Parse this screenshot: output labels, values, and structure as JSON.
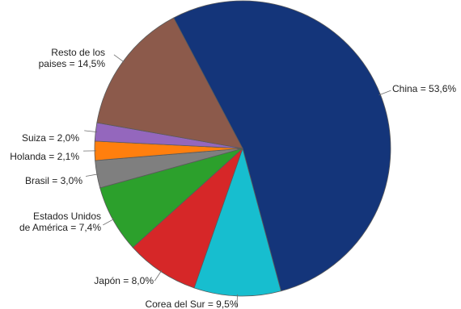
{
  "chart_data": {
    "type": "pie",
    "title": "",
    "legend": "none",
    "start_angle_deg": 332.2,
    "direction": "clockwise",
    "slices": [
      {
        "name": "China",
        "value": 53.6,
        "display": "53,6%",
        "color": "#14357a",
        "label_lines": [
          "China = 53,6%"
        ]
      },
      {
        "name": "Corea del Sur",
        "value": 9.5,
        "display": "9,5%",
        "color": "#17becf",
        "label_lines": [
          "Corea del Sur = 9,5%"
        ]
      },
      {
        "name": "Japón",
        "value": 8.0,
        "display": "8,0%",
        "color": "#d62728",
        "label_lines": [
          "Japón = 8,0%"
        ]
      },
      {
        "name": "Estados Unidos de América",
        "value": 7.4,
        "display": "7,4%",
        "color": "#2ca02c",
        "label_lines": [
          "Estados Unidos",
          "de América = 7,4%"
        ]
      },
      {
        "name": "Brasil",
        "value": 3.0,
        "display": "3,0%",
        "color": "#7f7f7f",
        "label_lines": [
          "Brasil = 3,0%"
        ]
      },
      {
        "name": "Holanda",
        "value": 2.1,
        "display": "2,1%",
        "color": "#ff7f0e",
        "label_lines": [
          "Holanda = 2,1%"
        ]
      },
      {
        "name": "Suiza",
        "value": 2.0,
        "display": "2,0%",
        "color": "#9467bd",
        "label_lines": [
          "Suiza = 2,0%"
        ]
      },
      {
        "name": "Resto de los paises",
        "value": 14.5,
        "display": "14,5%",
        "color": "#8c5a4b",
        "label_lines": [
          "Resto de los",
          "paises = 14,5%"
        ]
      }
    ]
  }
}
